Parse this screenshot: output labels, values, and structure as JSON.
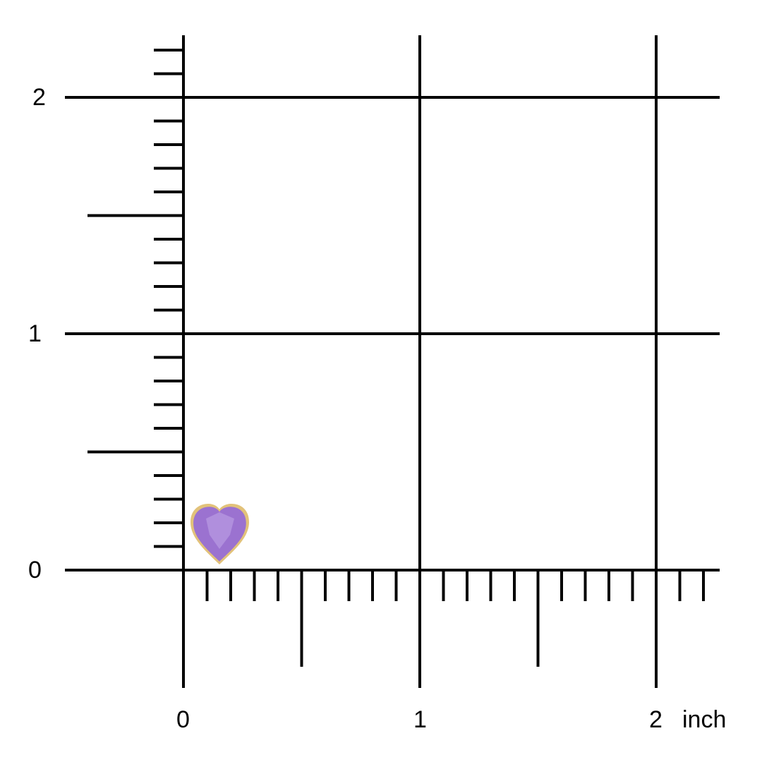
{
  "scale": {
    "unit": "inch",
    "x_labels": [
      "0",
      "1",
      "2"
    ],
    "y_labels": [
      "0",
      "1",
      "2"
    ],
    "minor_tick_step": 0.1,
    "half_tick_step": 0.5
  },
  "item": {
    "shape": "heart",
    "stone_color": "#9b72d0",
    "bezel_color": "#e2c27a",
    "approx_width_inch": 0.25
  },
  "colors": {
    "grid": "#000000",
    "background": "#ffffff"
  }
}
